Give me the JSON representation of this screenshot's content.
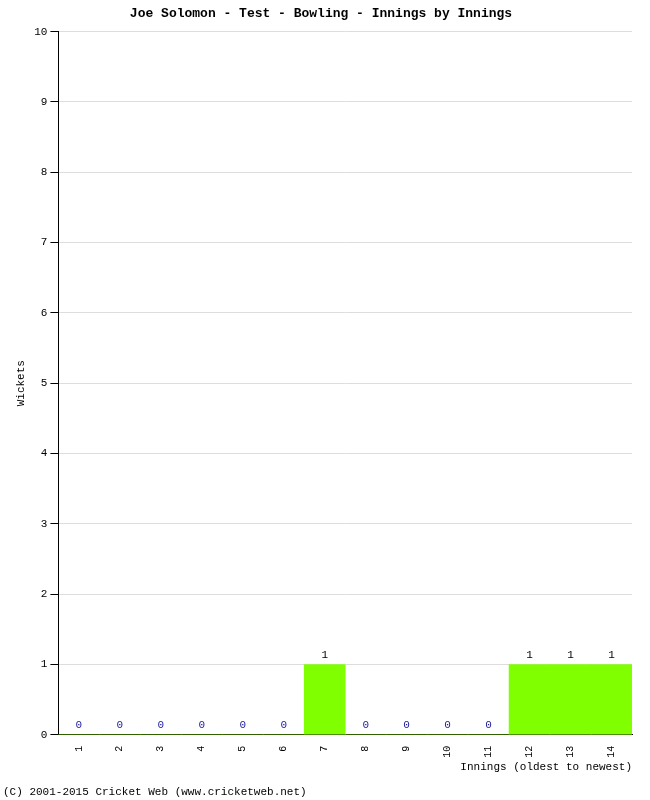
{
  "chart_data": {
    "type": "bar",
    "title": "Joe Solomon - Test - Bowling - Innings by Innings",
    "x_label": "Innings (oldest to newest)",
    "y_label": "Wickets",
    "categories": [
      "1",
      "2",
      "3",
      "4",
      "5",
      "6",
      "7",
      "8",
      "9",
      "10",
      "11",
      "12",
      "13",
      "14"
    ],
    "values": [
      0,
      0,
      0,
      0,
      0,
      0,
      1,
      0,
      0,
      0,
      0,
      1,
      1,
      1
    ],
    "color": "#7fff00",
    "ylim": [
      0,
      10
    ],
    "yticks": [
      0,
      1,
      2,
      3,
      4,
      5,
      6,
      7,
      8,
      9,
      10
    ],
    "grid": true,
    "data_labels": true,
    "annotations": [
      "(C) 2001-2015 Cricket Web (www.cricketweb.net)"
    ]
  }
}
